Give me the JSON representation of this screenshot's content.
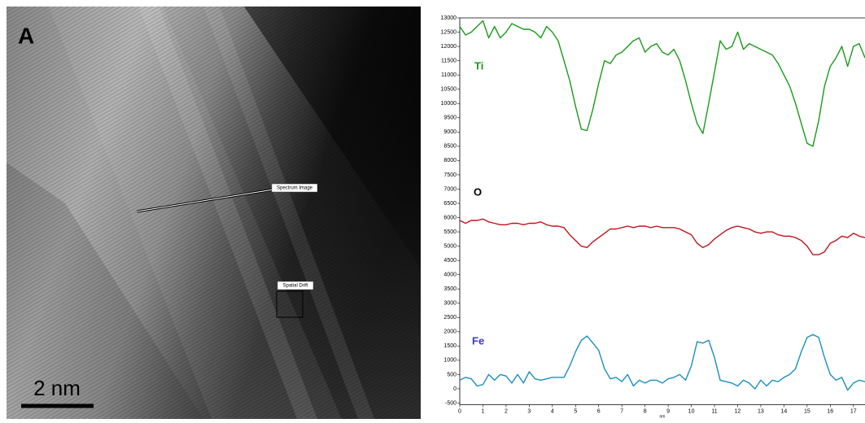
{
  "image": {
    "panel_label": "A",
    "scale_bar": "2 nm",
    "annotations": [
      "Spectrum Image",
      "Spatial Drift"
    ]
  },
  "chart_data": {
    "type": "line",
    "x_label": "nm",
    "x": [
      0,
      0.25,
      0.5,
      0.75,
      1,
      1.25,
      1.5,
      1.75,
      2,
      2.25,
      2.5,
      2.75,
      3,
      3.25,
      3.5,
      3.75,
      4,
      4.25,
      4.5,
      4.75,
      5,
      5.25,
      5.5,
      5.75,
      6,
      6.25,
      6.5,
      6.75,
      7,
      7.25,
      7.5,
      7.75,
      8,
      8.25,
      8.5,
      8.75,
      9,
      9.25,
      9.5,
      9.75,
      10,
      10.25,
      10.5,
      10.75,
      11,
      11.25,
      11.5,
      11.75,
      12,
      12.25,
      12.5,
      12.75,
      13,
      13.25,
      13.5,
      13.75,
      14,
      14.25,
      14.5,
      14.75,
      15,
      15.25,
      15.5,
      15.75,
      16,
      16.25,
      16.5,
      16.75,
      17,
      17.25,
      17.5
    ],
    "series": [
      {
        "name": "Ti",
        "color": "#1a9a1a",
        "label_color": "#1a9a1a",
        "values": [
          12700,
          12400,
          12500,
          12700,
          12900,
          12300,
          12700,
          12300,
          12500,
          12800,
          12700,
          12600,
          12600,
          12500,
          12300,
          12700,
          12500,
          12200,
          11500,
          10800,
          9900,
          9100,
          9050,
          9800,
          10700,
          11500,
          11400,
          11700,
          11800,
          12000,
          12200,
          12300,
          11800,
          12000,
          12100,
          11800,
          11700,
          11900,
          11500,
          10800,
          10000,
          9300,
          8950,
          10000,
          11100,
          12200,
          11900,
          12000,
          12500,
          11900,
          12100,
          12000,
          11900,
          11800,
          11700,
          11400,
          11000,
          10600,
          10000,
          9300,
          8600,
          8500,
          9400,
          10600,
          11300,
          11600,
          12000,
          11300,
          12000,
          12100,
          11600
        ]
      },
      {
        "name": "O",
        "color": "#c0141c",
        "label_color": "#000000",
        "values": [
          5900,
          5800,
          5900,
          5900,
          5950,
          5850,
          5800,
          5750,
          5750,
          5800,
          5800,
          5750,
          5800,
          5800,
          5850,
          5750,
          5700,
          5700,
          5650,
          5400,
          5200,
          5000,
          4950,
          5150,
          5300,
          5450,
          5600,
          5600,
          5650,
          5700,
          5650,
          5700,
          5700,
          5650,
          5700,
          5650,
          5650,
          5650,
          5600,
          5500,
          5400,
          5100,
          4950,
          5050,
          5250,
          5400,
          5550,
          5650,
          5700,
          5650,
          5600,
          5500,
          5450,
          5500,
          5500,
          5400,
          5350,
          5350,
          5300,
          5200,
          5000,
          4700,
          4700,
          4800,
          5100,
          5200,
          5350,
          5300,
          5450,
          5350,
          5300
        ]
      },
      {
        "name": "Fe",
        "color": "#1b8fc0",
        "label_color": "#3a3ad0",
        "values": [
          300,
          400,
          350,
          100,
          150,
          500,
          300,
          500,
          450,
          200,
          500,
          200,
          600,
          350,
          300,
          350,
          400,
          400,
          400,
          800,
          1300,
          1700,
          1850,
          1600,
          1350,
          700,
          350,
          400,
          250,
          500,
          100,
          300,
          200,
          300,
          300,
          200,
          350,
          400,
          500,
          300,
          800,
          1650,
          1600,
          1700,
          1100,
          300,
          250,
          200,
          100,
          300,
          200,
          0,
          300,
          100,
          300,
          250,
          400,
          500,
          700,
          1300,
          1800,
          1900,
          1800,
          1100,
          500,
          300,
          400,
          -50,
          200,
          300,
          250
        ]
      }
    ],
    "xlim": [
      0,
      17.5
    ],
    "xticks": [
      0,
      1,
      2,
      3,
      4,
      5,
      6,
      7,
      8,
      9,
      10,
      11,
      12,
      13,
      14,
      15,
      16,
      17
    ],
    "ylim": [
      -500,
      13000
    ],
    "yticks": [
      -500,
      0,
      500,
      1000,
      1500,
      2000,
      2500,
      3000,
      3500,
      4000,
      4500,
      5000,
      5500,
      6000,
      6500,
      7000,
      7500,
      8000,
      8500,
      9000,
      9500,
      10000,
      10500,
      11000,
      11500,
      12000,
      12500,
      13000
    ]
  }
}
